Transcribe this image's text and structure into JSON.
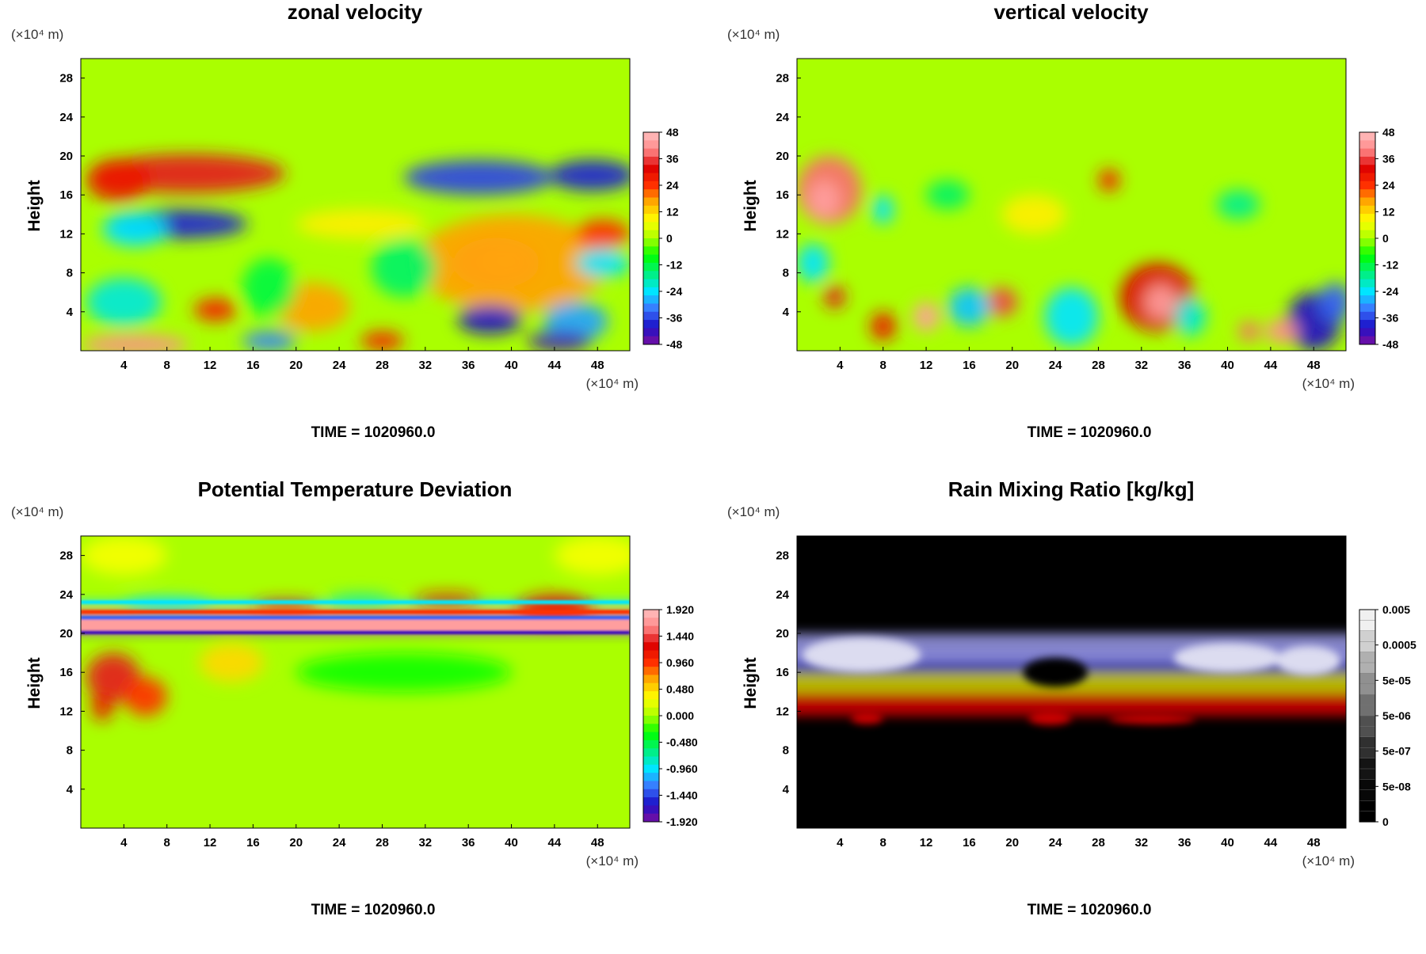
{
  "figure": {
    "time_label": "TIME = 1020960.0",
    "unit_label": "(×10⁴ m)",
    "colors": {
      "cmap_diverging": [
        "#7b0fa0",
        "#1a10c8",
        "#3a78ff",
        "#00e5ff",
        "#00f080",
        "#00ff00",
        "#aaff00",
        "#ffff00",
        "#ffb000",
        "#ff3000",
        "#dd0000",
        "#ff8888",
        "#ffc0c0"
      ],
      "cmap_rain": [
        "#000000",
        "#080808",
        "#141414",
        "#303030",
        "#505050",
        "#707070",
        "#909090",
        "#b0b0b0",
        "#d0d0d0",
        "#f0f0f0"
      ],
      "rain_features": [
        "#cc0000",
        "#c8c800",
        "#2828b8",
        "#9090d8",
        "#dcdcf0"
      ]
    }
  },
  "chart_data": [
    {
      "type": "heatmap",
      "title": "zonal velocity",
      "xlabel": "",
      "ylabel": "Height",
      "x_unit": "(×10⁴ m)",
      "y_unit": "(×10⁴ m)",
      "xlim": [
        0,
        51
      ],
      "ylim": [
        0,
        30
      ],
      "x_ticks": [
        4,
        8,
        12,
        16,
        20,
        24,
        28,
        32,
        36,
        40,
        44,
        48
      ],
      "y_ticks": [
        4,
        8,
        12,
        16,
        20,
        24,
        28
      ],
      "colorbar_ticks": [
        "48",
        "36",
        "24",
        "12",
        "0",
        "-12",
        "-24",
        "-36",
        "-48"
      ],
      "colormap": "diverging",
      "time": "TIME = 1020960.0",
      "blobs": [
        {
          "x": 38.6,
          "y": 9.0,
          "rx": 4.0,
          "ry": 2.6,
          "v": 0.85
        },
        {
          "x": 39.5,
          "y": 9.2,
          "rx": 2.0,
          "ry": 1.2,
          "v": 1.0
        },
        {
          "x": 40.0,
          "y": 9.0,
          "rx": 9.0,
          "ry": 5.0,
          "v": 0.35
        },
        {
          "x": 9.0,
          "y": 13.0,
          "rx": 6.5,
          "ry": 1.5,
          "v": -0.8
        },
        {
          "x": 5.0,
          "y": 12.5,
          "rx": 3.0,
          "ry": 1.8,
          "v": -0.5
        },
        {
          "x": 37.0,
          "y": 17.8,
          "rx": 7.0,
          "ry": 1.8,
          "v": -0.75
        },
        {
          "x": 47.5,
          "y": 18.0,
          "rx": 4.0,
          "ry": 1.6,
          "v": -0.8
        },
        {
          "x": 10.0,
          "y": 18.2,
          "rx": 9.0,
          "ry": 2.0,
          "v": 0.7
        },
        {
          "x": 3.5,
          "y": 17.5,
          "rx": 3.0,
          "ry": 2.2,
          "v": 0.6
        },
        {
          "x": 17.5,
          "y": 1.0,
          "rx": 2.5,
          "ry": 1.0,
          "v": -0.65
        },
        {
          "x": 28.0,
          "y": 1.0,
          "rx": 2.0,
          "ry": 1.0,
          "v": 0.55
        },
        {
          "x": 38.0,
          "y": 3.2,
          "rx": 3.0,
          "ry": 1.5,
          "v": -0.85
        },
        {
          "x": 46.0,
          "y": 3.0,
          "rx": 3.0,
          "ry": 2.0,
          "v": -0.6
        },
        {
          "x": 44.5,
          "y": 1.0,
          "rx": 3.0,
          "ry": 1.0,
          "v": -0.9
        },
        {
          "x": 5.0,
          "y": 0.6,
          "rx": 5.0,
          "ry": 1.0,
          "v": 0.85
        },
        {
          "x": 4.0,
          "y": 5.0,
          "rx": 3.5,
          "ry": 2.5,
          "v": -0.45
        },
        {
          "x": 21.5,
          "y": 4.5,
          "rx": 3.5,
          "ry": 2.5,
          "v": 0.35
        },
        {
          "x": 12.5,
          "y": 4.2,
          "rx": 2.0,
          "ry": 1.2,
          "v": 0.55
        },
        {
          "x": 30.0,
          "y": 8.5,
          "rx": 3.0,
          "ry": 3.0,
          "v": -0.3
        },
        {
          "x": 17.5,
          "y": 6.5,
          "rx": 2.5,
          "ry": 3.0,
          "v": -0.25
        },
        {
          "x": 48.5,
          "y": 12.0,
          "rx": 2.5,
          "ry": 1.5,
          "v": 0.5
        },
        {
          "x": 48.5,
          "y": 9.0,
          "rx": 2.5,
          "ry": 1.5,
          "v": -0.5
        },
        {
          "x": 26.0,
          "y": 13.0,
          "rx": 6.0,
          "ry": 1.5,
          "v": 0.2
        }
      ]
    },
    {
      "type": "heatmap",
      "title": "vertical velocity",
      "xlabel": "",
      "ylabel": "Height",
      "x_unit": "(×10⁴ m)",
      "y_unit": "(×10⁴ m)",
      "xlim": [
        0,
        51
      ],
      "ylim": [
        0,
        30
      ],
      "x_ticks": [
        4,
        8,
        12,
        16,
        20,
        24,
        28,
        32,
        36,
        40,
        44,
        48
      ],
      "y_ticks": [
        4,
        8,
        12,
        16,
        20,
        24,
        28
      ],
      "colorbar_ticks": [
        "48",
        "36",
        "24",
        "12",
        "0",
        "-12",
        "-24",
        "-36",
        "-48"
      ],
      "colormap": "diverging",
      "time": "TIME = 1020960.0",
      "blobs": [
        {
          "x": 3.0,
          "y": 16.5,
          "rx": 3.0,
          "ry": 3.5,
          "v": 0.8
        },
        {
          "x": 2.5,
          "y": 15.5,
          "rx": 1.5,
          "ry": 2.0,
          "v": 0.9
        },
        {
          "x": 33.5,
          "y": 5.5,
          "rx": 3.5,
          "ry": 3.5,
          "v": 0.65
        },
        {
          "x": 33.8,
          "y": 5.0,
          "rx": 1.5,
          "ry": 1.8,
          "v": 0.9
        },
        {
          "x": 48.0,
          "y": 3.0,
          "rx": 2.5,
          "ry": 3.0,
          "v": -0.85
        },
        {
          "x": 50.0,
          "y": 5.0,
          "rx": 1.5,
          "ry": 2.0,
          "v": -0.7
        },
        {
          "x": 45.0,
          "y": 2.0,
          "rx": 1.5,
          "ry": 1.2,
          "v": 0.85
        },
        {
          "x": 12.0,
          "y": 3.5,
          "rx": 1.2,
          "ry": 1.5,
          "v": 0.9
        },
        {
          "x": 19.0,
          "y": 5.0,
          "rx": 1.5,
          "ry": 1.5,
          "v": 0.75
        },
        {
          "x": 16.0,
          "y": 4.5,
          "rx": 2.0,
          "ry": 2.0,
          "v": -0.55
        },
        {
          "x": 25.5,
          "y": 3.5,
          "rx": 2.5,
          "ry": 3.0,
          "v": -0.5
        },
        {
          "x": 8.0,
          "y": 2.5,
          "rx": 1.2,
          "ry": 1.5,
          "v": 0.6
        },
        {
          "x": 3.5,
          "y": 5.5,
          "rx": 1.0,
          "ry": 1.2,
          "v": 0.7
        },
        {
          "x": 1.5,
          "y": 9.0,
          "rx": 1.5,
          "ry": 2.0,
          "v": -0.5
        },
        {
          "x": 42.0,
          "y": 2.0,
          "rx": 1.0,
          "ry": 1.0,
          "v": 0.8
        },
        {
          "x": 36.5,
          "y": 3.5,
          "rx": 1.5,
          "ry": 2.0,
          "v": -0.45
        },
        {
          "x": 14.0,
          "y": 16.0,
          "rx": 2.0,
          "ry": 1.5,
          "v": -0.3
        },
        {
          "x": 29.0,
          "y": 17.5,
          "rx": 1.0,
          "ry": 1.2,
          "v": 0.55
        },
        {
          "x": 41.0,
          "y": 15.0,
          "rx": 2.0,
          "ry": 1.5,
          "v": -0.35
        },
        {
          "x": 22.0,
          "y": 14.0,
          "rx": 3.0,
          "ry": 2.0,
          "v": 0.2
        },
        {
          "x": 8.0,
          "y": 14.5,
          "rx": 1.0,
          "ry": 1.5,
          "v": -0.5
        }
      ]
    },
    {
      "type": "heatmap",
      "title": "Potential Temperature Deviation",
      "xlabel": "",
      "ylabel": "Height",
      "x_unit": "(×10⁴ m)",
      "y_unit": "(×10⁴ m)",
      "xlim": [
        0,
        51
      ],
      "ylim": [
        0,
        30
      ],
      "x_ticks": [
        4,
        8,
        12,
        16,
        20,
        24,
        28,
        32,
        36,
        40,
        44,
        48
      ],
      "y_ticks": [
        4,
        8,
        12,
        16,
        20,
        24,
        28
      ],
      "colorbar_ticks": [
        "1.920",
        "1.440",
        "0.960",
        "0.480",
        "0.000",
        "-0.480",
        "-0.960",
        "-1.440",
        "-1.920"
      ],
      "colormap": "diverging",
      "time": "TIME = 1020960.0",
      "bands": [
        {
          "y0": 20.2,
          "y1": 21.4,
          "v": 0.9
        },
        {
          "y0": 19.9,
          "y1": 20.3,
          "v": -0.9
        },
        {
          "y0": 21.4,
          "y1": 21.8,
          "v": -0.7
        },
        {
          "y0": 22.0,
          "y1": 22.4,
          "v": 0.5
        },
        {
          "y0": 23.0,
          "y1": 23.4,
          "v": -0.5
        }
      ],
      "blobs": [
        {
          "x": 3.0,
          "y": 15.5,
          "rx": 2.5,
          "ry": 2.5,
          "v": 0.7
        },
        {
          "x": 6.0,
          "y": 13.5,
          "rx": 2.0,
          "ry": 2.0,
          "v": 0.5
        },
        {
          "x": 2.0,
          "y": 12.5,
          "rx": 1.0,
          "ry": 1.5,
          "v": 0.6
        },
        {
          "x": 44.0,
          "y": 22.5,
          "rx": 3.5,
          "ry": 1.5,
          "v": 0.6
        },
        {
          "x": 34.0,
          "y": 23.5,
          "rx": 3.0,
          "ry": 0.6,
          "v": 0.6
        },
        {
          "x": 19.0,
          "y": 22.8,
          "rx": 3.0,
          "ry": 0.6,
          "v": 0.55
        },
        {
          "x": 8.0,
          "y": 23.0,
          "rx": 4.0,
          "ry": 0.6,
          "v": -0.5
        },
        {
          "x": 26.0,
          "y": 23.5,
          "rx": 3.0,
          "ry": 0.5,
          "v": -0.4
        },
        {
          "x": 48.0,
          "y": 28.0,
          "rx": 4.0,
          "ry": 2.0,
          "v": 0.15
        },
        {
          "x": 4.0,
          "y": 28.0,
          "rx": 4.0,
          "ry": 2.0,
          "v": 0.15
        },
        {
          "x": 30.0,
          "y": 16.0,
          "rx": 10.0,
          "ry": 2.0,
          "v": -0.15
        },
        {
          "x": 14.0,
          "y": 17.0,
          "rx": 3.0,
          "ry": 2.0,
          "v": 0.25
        }
      ]
    },
    {
      "type": "heatmap",
      "title": "Rain Mixing Ratio [kg/kg]",
      "xlabel": "",
      "ylabel": "Height",
      "x_unit": "(×10⁴ m)",
      "y_unit": "(×10⁴ m)",
      "xlim": [
        0,
        51
      ],
      "ylim": [
        0,
        30
      ],
      "x_ticks": [
        4,
        8,
        12,
        16,
        20,
        24,
        28,
        32,
        36,
        40,
        44,
        48
      ],
      "y_ticks": [
        4,
        8,
        12,
        16,
        20,
        24,
        28
      ],
      "colorbar_ticks": [
        "0.005",
        "0.0005",
        "5e-05",
        "5e-06",
        "5e-07",
        "5e-08",
        "0"
      ],
      "colormap": "rain",
      "time": "TIME = 1020960.0",
      "layers": [
        {
          "y0": 11.5,
          "y1": 14.0,
          "color": "#cc0000"
        },
        {
          "y0": 13.8,
          "y1": 16.0,
          "color": "#c8c800"
        },
        {
          "y0": 16.0,
          "y1": 18.5,
          "color": "#2828b8"
        },
        {
          "y0": 17.0,
          "y1": 20.0,
          "color": "#9090d8"
        }
      ],
      "rain_patches": [
        {
          "x": 6.0,
          "y": 17.8,
          "rx": 5.5,
          "ry": 1.8,
          "color": "#dcdcf0"
        },
        {
          "x": 40.0,
          "y": 17.5,
          "rx": 5.0,
          "ry": 1.5,
          "color": "#dcdcf0"
        },
        {
          "x": 47.5,
          "y": 17.2,
          "rx": 3.0,
          "ry": 1.5,
          "color": "#dcdcf0"
        },
        {
          "x": 24.0,
          "y": 16.0,
          "rx": 3.0,
          "ry": 1.5,
          "color": "#000000"
        },
        {
          "x": 23.5,
          "y": 11.3,
          "rx": 2.0,
          "ry": 0.7,
          "color": "#cc0000"
        },
        {
          "x": 33.0,
          "y": 11.2,
          "rx": 4.0,
          "ry": 0.5,
          "color": "#cc0000"
        },
        {
          "x": 6.5,
          "y": 11.3,
          "rx": 1.5,
          "ry": 0.6,
          "color": "#cc0000"
        }
      ]
    }
  ]
}
